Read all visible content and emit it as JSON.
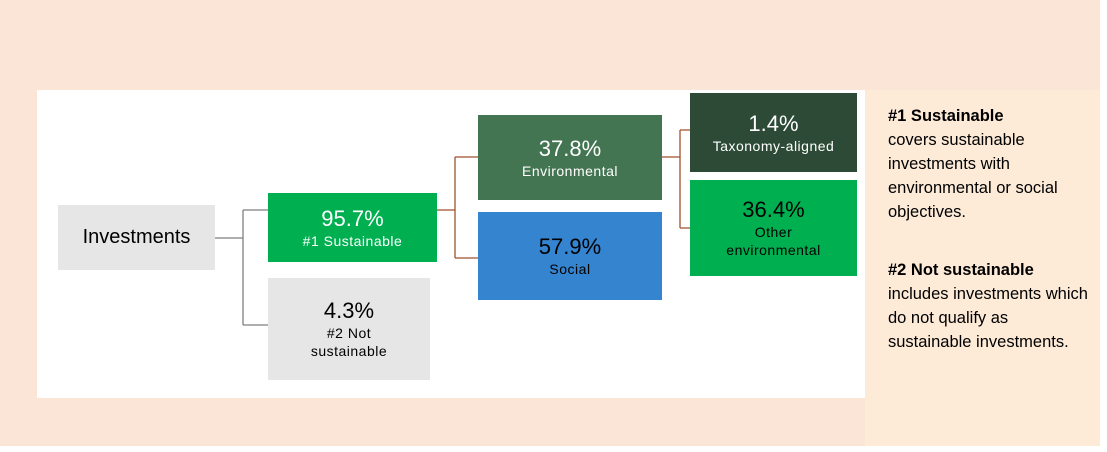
{
  "nodes": [
    {
      "label": "Investments"
    },
    {
      "value": "95.7%",
      "label": "#1 Sustainable"
    },
    {
      "value": "4.3%",
      "label": "#2 Not sustainable"
    },
    {
      "value": "37.8%",
      "label": "Environmental"
    },
    {
      "value": "57.9%",
      "label": "Social"
    },
    {
      "value": "1.4%",
      "label": "Taxonomy-aligned"
    },
    {
      "value": "36.4%",
      "label": "Other environmental"
    }
  ],
  "legend": [
    {
      "term": "#1 Sustainable",
      "text": "covers sustainable investments with environmental or social objectives."
    },
    {
      "term": "#2 Not sustainable",
      "text": "includes investments which do not qualify as sustainable investments."
    }
  ]
}
